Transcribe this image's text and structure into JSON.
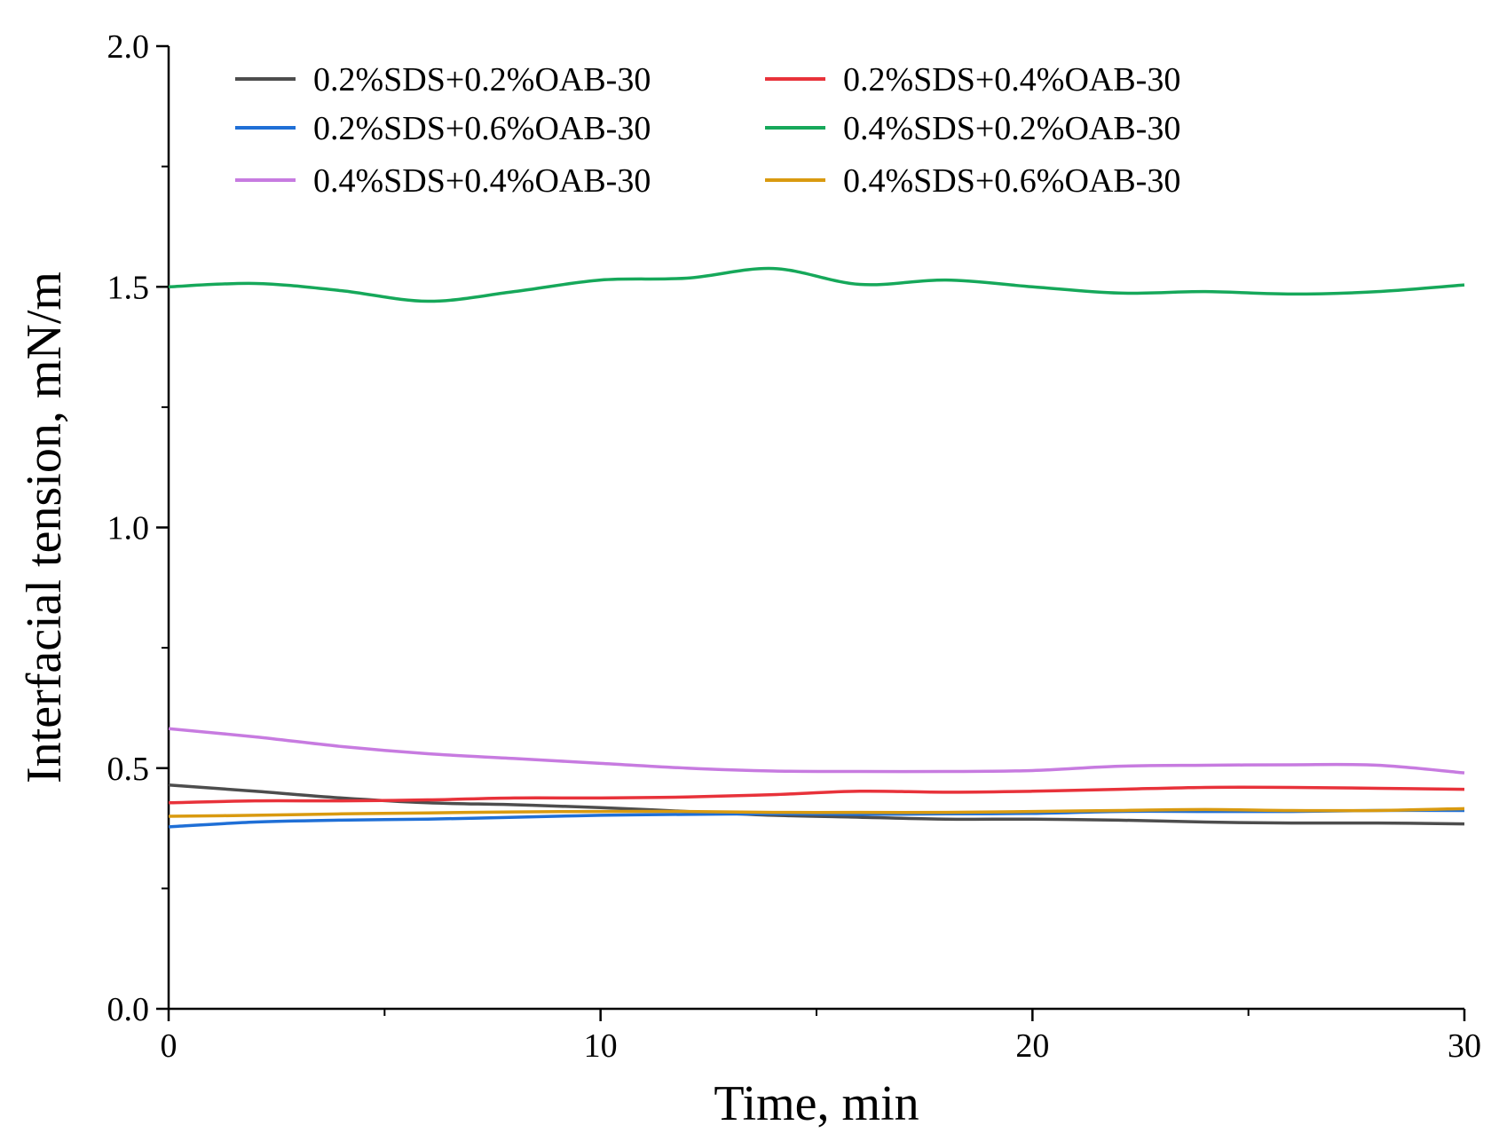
{
  "chart_data": {
    "type": "line",
    "title": "",
    "xlabel": "Time, min",
    "ylabel": "Interfacial tension, mN/m",
    "xlim": [
      0,
      30
    ],
    "ylim": [
      0.0,
      2.0
    ],
    "xticks": [
      "0",
      "10",
      "20",
      "30"
    ],
    "yticks": [
      "0.0",
      "0.5",
      "1.0",
      "1.5",
      "2.0"
    ],
    "grid": false,
    "legend_position": "top",
    "x": [
      0,
      2,
      4,
      6,
      8,
      10,
      12,
      14,
      16,
      18,
      20,
      22,
      24,
      26,
      28,
      30
    ],
    "series": [
      {
        "name": "0.2%SDS+0.2%OAB-30",
        "color": "#4d4d4d",
        "values": [
          0.465,
          0.452,
          0.438,
          0.428,
          0.424,
          0.418,
          0.41,
          0.402,
          0.398,
          0.394,
          0.394,
          0.392,
          0.388,
          0.386,
          0.386,
          0.384
        ]
      },
      {
        "name": "0.2%SDS+0.4%OAB-30",
        "color": "#e8323a",
        "values": [
          0.428,
          0.432,
          0.432,
          0.434,
          0.438,
          0.438,
          0.44,
          0.445,
          0.452,
          0.45,
          0.452,
          0.456,
          0.46,
          0.46,
          0.458,
          0.456
        ]
      },
      {
        "name": "0.2%SDS+0.6%OAB-30",
        "color": "#1f6fd6",
        "values": [
          0.378,
          0.388,
          0.392,
          0.394,
          0.398,
          0.402,
          0.404,
          0.405,
          0.404,
          0.405,
          0.406,
          0.41,
          0.41,
          0.41,
          0.412,
          0.412
        ]
      },
      {
        "name": "0.4%SDS+0.2%OAB-30",
        "color": "#16a85a",
        "values": [
          1.5,
          1.507,
          1.492,
          1.47,
          1.49,
          1.514,
          1.518,
          1.538,
          1.505,
          1.514,
          1.5,
          1.487,
          1.49,
          1.485,
          1.49,
          1.504
        ]
      },
      {
        "name": "0.4%SDS+0.4%OAB-30",
        "color": "#c77be0",
        "values": [
          0.582,
          0.565,
          0.545,
          0.53,
          0.52,
          0.51,
          0.5,
          0.494,
          0.493,
          0.493,
          0.495,
          0.504,
          0.506,
          0.507,
          0.506,
          0.49
        ]
      },
      {
        "name": "0.4%SDS+0.6%OAB-30",
        "color": "#d99a10",
        "values": [
          0.4,
          0.402,
          0.405,
          0.407,
          0.409,
          0.41,
          0.41,
          0.408,
          0.408,
          0.408,
          0.41,
          0.412,
          0.414,
          0.412,
          0.412,
          0.416
        ]
      }
    ]
  }
}
